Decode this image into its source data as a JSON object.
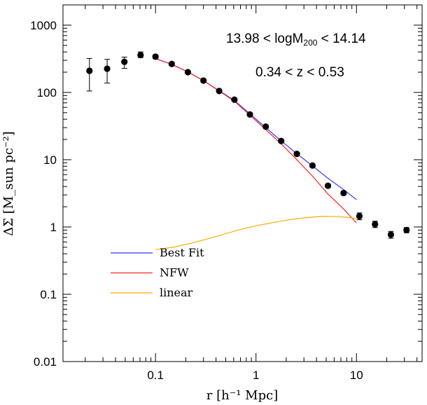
{
  "chart_data": {
    "type": "scatter",
    "title": "",
    "xlabel": "r [h⁻¹ Mpc]",
    "ylabel": "ΔΣ  [M_sun pc⁻²]",
    "xscale": "log",
    "yscale": "log",
    "xlim": [
      0.012,
      45
    ],
    "ylim": [
      0.01,
      2000
    ],
    "x_ticks": [
      0.1,
      1,
      10
    ],
    "x_tick_labels": [
      "0.1",
      "1",
      "10"
    ],
    "y_ticks": [
      0.01,
      0.1,
      1,
      10,
      100,
      1000
    ],
    "y_tick_labels": [
      "0.01",
      "0.1",
      "1",
      "10",
      "100",
      "1000"
    ],
    "annotations": [
      {
        "text": "13.98 < logM",
        "sub": "200",
        "text2": " < 14.14"
      },
      {
        "text": "0.34 < z < 0.53"
      }
    ],
    "points": {
      "x": [
        0.022,
        0.033,
        0.049,
        0.071,
        0.1,
        0.145,
        0.21,
        0.3,
        0.43,
        0.61,
        0.87,
        1.25,
        1.78,
        2.55,
        3.65,
        5.2,
        7.45,
        10.7,
        15.3,
        22,
        31.5
      ],
      "y": [
        210,
        225,
        285,
        360,
        340,
        265,
        200,
        150,
        105,
        78,
        47,
        31,
        19,
        12.2,
        8.2,
        4.1,
        3.2,
        1.45,
        1.1,
        0.77,
        0.9
      ],
      "err_lo": [
        105,
        138,
        228,
        330,
        318,
        253,
        192,
        144,
        101,
        75,
        45,
        29.5,
        18.2,
        11.6,
        7.8,
        3.85,
        3.0,
        1.28,
        0.98,
        0.68,
        0.82
      ],
      "err_hi": [
        320,
        310,
        335,
        400,
        362,
        278,
        208,
        157,
        109,
        81,
        49,
        32.5,
        19.8,
        12.8,
        8.6,
        4.35,
        3.4,
        1.62,
        1.22,
        0.86,
        0.98
      ]
    },
    "series": [
      {
        "name": "Best Fit",
        "color": "#3333ff",
        "x": [
          0.1,
          0.145,
          0.21,
          0.3,
          0.43,
          0.61,
          0.87,
          1.25,
          1.78,
          2.55,
          3.65,
          5.2,
          7.45,
          10
        ],
        "y": [
          320,
          262,
          202,
          150,
          106,
          76,
          48,
          30,
          19,
          12.3,
          8.1,
          5.3,
          3.6,
          2.55
        ]
      },
      {
        "name": "NFW",
        "color": "#ff2222",
        "x": [
          0.1,
          0.145,
          0.21,
          0.3,
          0.43,
          0.61,
          0.87,
          1.25,
          1.78,
          2.55,
          3.65,
          5.2,
          7.45,
          10
        ],
        "y": [
          318,
          262,
          202,
          150,
          105,
          74,
          46,
          28,
          17.2,
          10,
          5.7,
          3.1,
          1.85,
          1.15
        ]
      },
      {
        "name": "linear",
        "color": "#ffaa00",
        "x": [
          0.1,
          0.15,
          0.22,
          0.3,
          0.45,
          0.7,
          1,
          1.5,
          2.2,
          3.2,
          4.6,
          6.5,
          8.5,
          10
        ],
        "y": [
          0.46,
          0.5,
          0.57,
          0.64,
          0.76,
          0.92,
          1.04,
          1.17,
          1.29,
          1.38,
          1.44,
          1.43,
          1.38,
          1.33
        ]
      }
    ],
    "legend": {
      "position": "bottom-left",
      "entries": [
        "Best Fit",
        "NFW",
        "linear"
      ]
    }
  }
}
